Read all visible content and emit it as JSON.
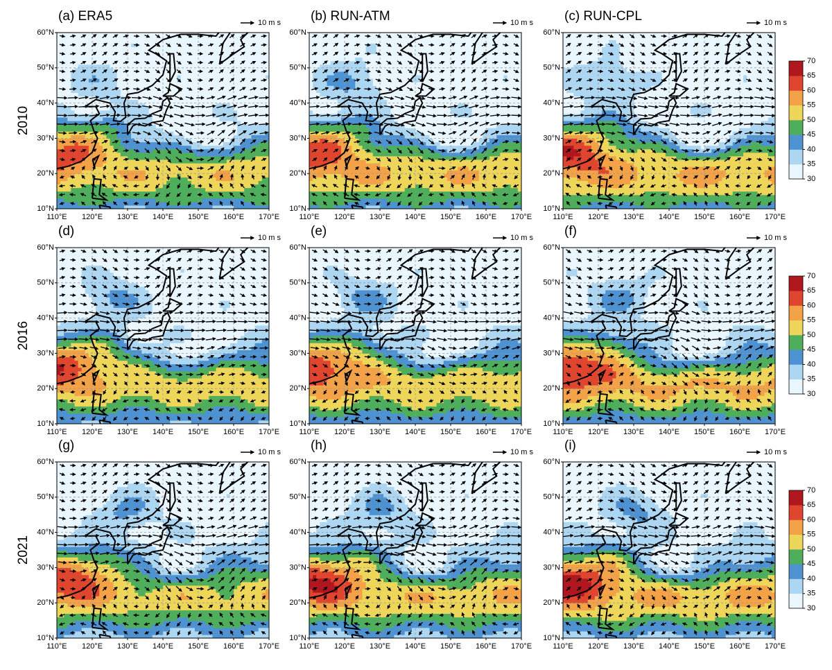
{
  "chart_data": {
    "type": "map",
    "panels": [
      {
        "title": "(a) ERA5"
      },
      {
        "title": "(b) RUN-ATM"
      },
      {
        "title": "(c) RUN-CPL"
      },
      {
        "title": "(d)"
      },
      {
        "title": "(e)"
      },
      {
        "title": "(f)"
      },
      {
        "title": "(g)"
      },
      {
        "title": "(h)"
      },
      {
        "title": "(i)"
      }
    ],
    "rows": [
      "2010",
      "2016",
      "2021"
    ],
    "wind_scale_label": "10 m s",
    "xlim": [
      110,
      170
    ],
    "ylim": [
      10,
      60
    ],
    "xticks": [
      {
        "value": 110,
        "label": "110°E"
      },
      {
        "value": 120,
        "label": "120°E"
      },
      {
        "value": 130,
        "label": "130°E"
      },
      {
        "value": 140,
        "label": "140°E"
      },
      {
        "value": 150,
        "label": "150°E"
      },
      {
        "value": 160,
        "label": "160°E"
      },
      {
        "value": 170,
        "label": "170°E"
      }
    ],
    "yticks": [
      {
        "value": 10,
        "label": "10°N"
      },
      {
        "value": 20,
        "label": "20°N"
      },
      {
        "value": 30,
        "label": "30°N"
      },
      {
        "value": 40,
        "label": "40°N"
      },
      {
        "value": 50,
        "label": "50°N"
      },
      {
        "value": 60,
        "label": "60°N"
      }
    ],
    "grid": true,
    "colorbar": {
      "clim": [
        30,
        70
      ],
      "ticks": [
        30,
        35,
        40,
        45,
        50,
        55,
        60,
        65,
        70
      ],
      "colors": [
        "#e9f6fd",
        "#acd6f1",
        "#4f92d1",
        "#4fae5c",
        "#eed65a",
        "#f3a247",
        "#e0462f",
        "#b0171f"
      ]
    }
  }
}
